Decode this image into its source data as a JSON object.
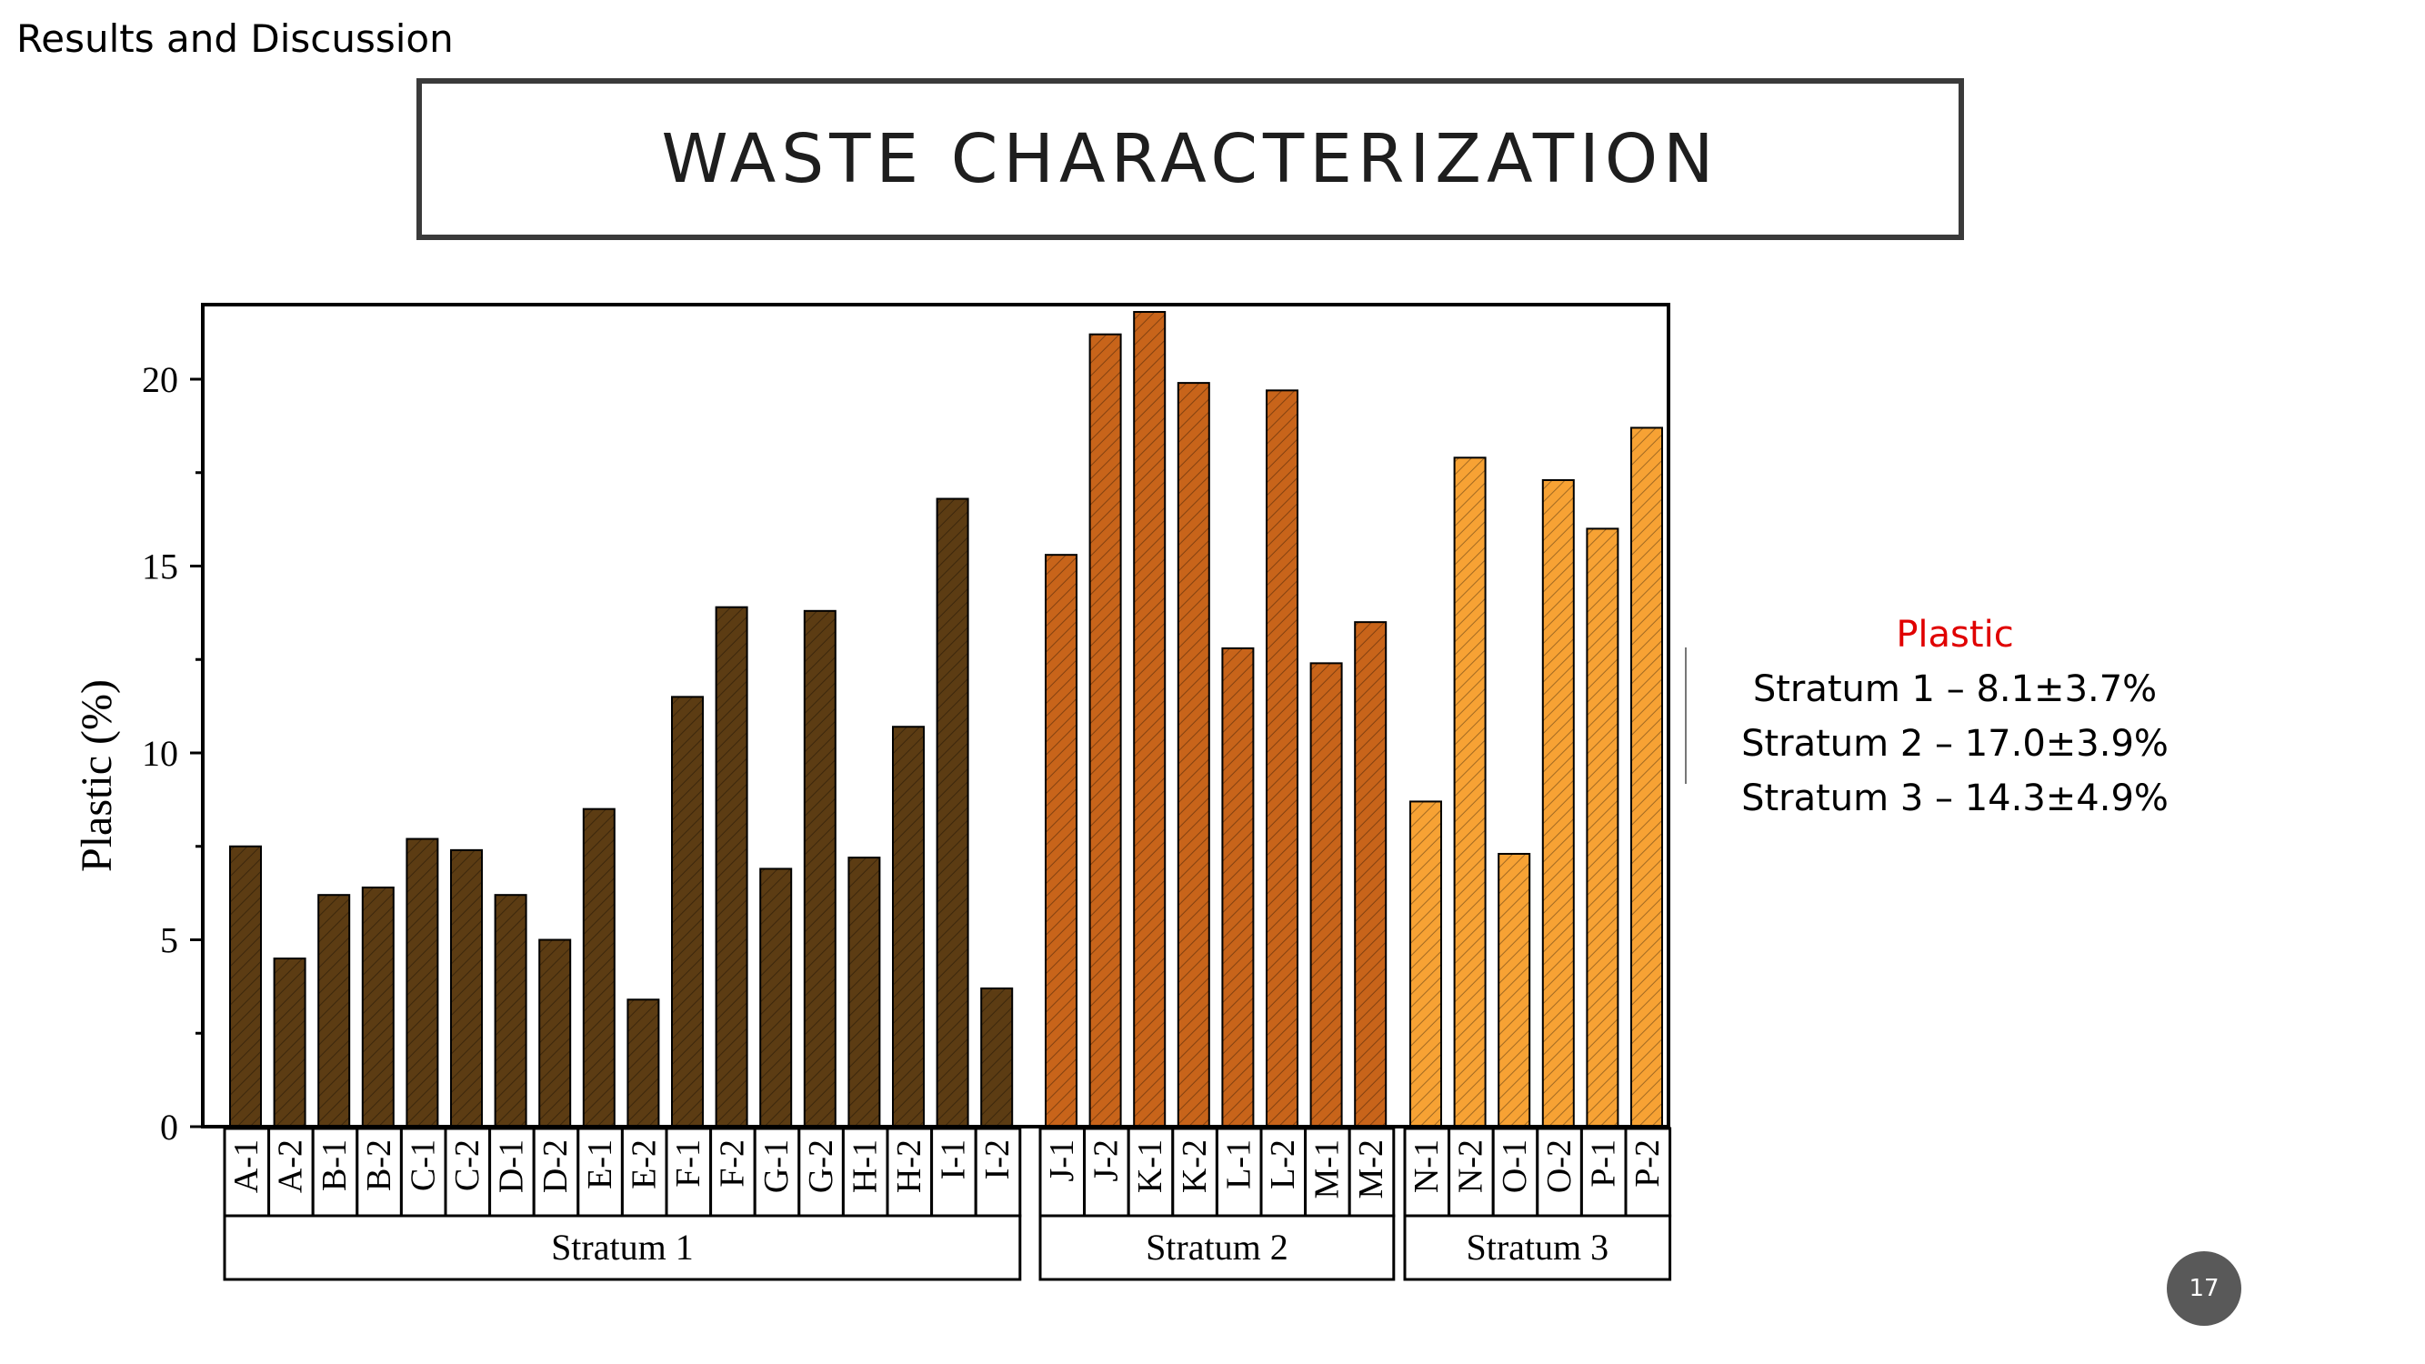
{
  "slide": {
    "section": "Results and Discussion",
    "title": "WASTE CHARACTERIZATION",
    "page_number": "17"
  },
  "stats": {
    "title": "Plastic",
    "lines": [
      "Stratum 1 – 8.1±3.7%",
      "Stratum 2 – 17.0±3.9%",
      "Stratum 3 – 14.3±4.9%"
    ]
  },
  "colors": {
    "stratum1": "#5c3c13",
    "stratum2": "#c8641a",
    "stratum3": "#f7a234",
    "title_accent": "#e00000"
  },
  "chart_data": {
    "type": "bar",
    "title": "",
    "xlabel": "",
    "ylabel": "Plastic (%)",
    "ylim": [
      0,
      22
    ],
    "yticks": [
      0,
      5,
      10,
      15,
      20
    ],
    "grid": false,
    "groups": [
      {
        "name": "Stratum 1",
        "categories": [
          "A-1",
          "A-2",
          "B-1",
          "B-2",
          "C-1",
          "C-2",
          "D-1",
          "D-2",
          "E-1",
          "E-2",
          "F-1",
          "F-2",
          "G-1",
          "G-2",
          "H-1",
          "H-2",
          "I-1",
          "I-2"
        ],
        "values": [
          7.5,
          4.5,
          6.2,
          6.4,
          7.7,
          7.4,
          6.2,
          5.0,
          8.5,
          3.4,
          11.5,
          13.9,
          6.9,
          13.8,
          7.2,
          10.7,
          16.8,
          3.7
        ]
      },
      {
        "name": "Stratum 2",
        "categories": [
          "J-1",
          "J-2",
          "K-1",
          "K-2",
          "L-1",
          "L-2",
          "M-1",
          "M-2"
        ],
        "values": [
          15.3,
          21.2,
          21.8,
          19.9,
          12.8,
          19.7,
          12.4,
          13.5
        ]
      },
      {
        "name": "Stratum 3",
        "categories": [
          "N-1",
          "N-2",
          "O-1",
          "O-2",
          "P-1",
          "P-2"
        ],
        "values": [
          8.7,
          17.9,
          7.3,
          17.3,
          16.0,
          18.7
        ]
      }
    ]
  }
}
